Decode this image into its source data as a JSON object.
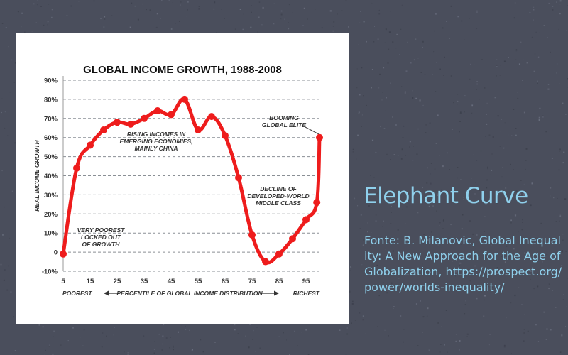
{
  "slide": {
    "title": "Elephant Curve",
    "source": "Fonte: B. Milanovic, Global Inequality: A New Approach for the Age of Globalization, https://prospect.org/power/worlds-inequality/"
  },
  "colors": {
    "background": "#4a4e5c",
    "accent_text": "#8fd0ec",
    "line": "#ee1c1c",
    "card": "#ffffff"
  },
  "chart_data": {
    "type": "line",
    "title": "GLOBAL INCOME GROWTH, 1988-2008",
    "ylabel": "REAL INCOME GROWTH",
    "xlabel": "PERCENTILE OF GLOBAL INCOME DISTRIBUTION",
    "xlabel_left": "POOREST",
    "xlabel_right": "RICHEST",
    "xlim": [
      5,
      100
    ],
    "ylim": [
      -10,
      90
    ],
    "xticks": [
      "5",
      "15",
      "25",
      "35",
      "45",
      "55",
      "65",
      "75",
      "85",
      "95"
    ],
    "yticks": [
      "90%",
      "80%",
      "70%",
      "60%",
      "50%",
      "40%",
      "30%",
      "20%",
      "10%",
      "0",
      "-10%"
    ],
    "grid": "horizontal dashed",
    "series": [
      {
        "x": [
          5,
          10,
          15,
          20,
          25,
          30,
          35,
          40,
          45,
          50,
          55,
          60,
          65,
          70,
          75,
          80,
          85,
          90,
          95,
          99,
          100
        ],
        "y": [
          -1,
          44,
          56,
          64,
          68,
          67,
          70,
          74,
          72,
          80,
          64,
          71,
          61,
          39,
          9,
          -5,
          -1,
          7,
          17,
          26,
          60
        ]
      }
    ],
    "annotations": [
      {
        "text": "RISING INCOMES IN\nEMERGING ECONOMIES,\nMAINLY CHINA"
      },
      {
        "text": "VERY POOREST\nLOCKED OUT\nOF GROWTH"
      },
      {
        "text": "BOOMING\nGLOBAL ELITE"
      },
      {
        "text": "DECLINE OF\nDEVELOPED-WORLD\nMIDDLE CLASS"
      }
    ]
  }
}
